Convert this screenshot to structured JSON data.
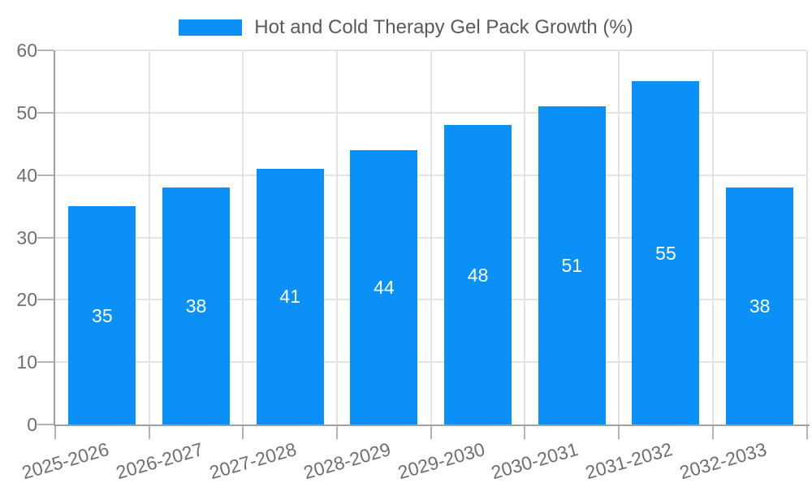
{
  "chart_data": {
    "type": "bar",
    "title": "Hot and Cold Therapy Gel Pack Growth (%)",
    "legend_position": "top-center",
    "categories": [
      "2025-2026",
      "2026-2027",
      "2027-2028",
      "2028-2029",
      "2029-2030",
      "2030-2031",
      "2031-2032",
      "2032-2033"
    ],
    "series": [
      {
        "name": "Hot and Cold Therapy Gel Pack Growth (%)",
        "values": [
          35,
          38,
          41,
          44,
          48,
          51,
          55,
          38
        ]
      }
    ],
    "xlabel": "",
    "ylabel": "",
    "ylim": [
      0,
      60
    ],
    "yticks": [
      0,
      10,
      20,
      30,
      40,
      50,
      60
    ],
    "grid": true,
    "bar_value_labels_shown": true,
    "x_tick_rotation_deg": -16,
    "colors": {
      "bar": "#0b90f7",
      "bar_value_label": "#ffffff",
      "axis_line": "#a0a0a0",
      "tick_mark": "#b3b3b3",
      "gridline": "#e4e4e4",
      "tick_label_text": "#6f6f6f",
      "legend_text": "#5a5a5a",
      "background": "#ffffff"
    }
  }
}
